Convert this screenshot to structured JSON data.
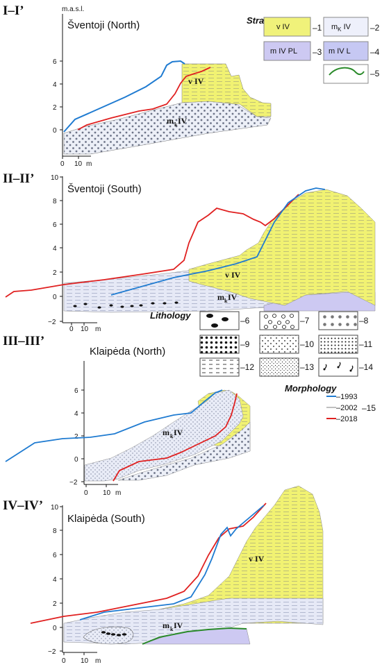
{
  "profiles": [
    {
      "id": "I–I’",
      "place": "Šventoji (North)",
      "yticks": [
        "0",
        "2",
        "4",
        "6"
      ],
      "xticks": [
        "0",
        "10",
        "m"
      ],
      "units": [
        "v IV",
        "m",
        "k",
        "IV"
      ]
    },
    {
      "id": "II–II’",
      "place": "Šventoji (South)",
      "yticks": [
        "−2",
        "0",
        "2",
        "4",
        "6",
        "8",
        "10"
      ],
      "xticks": [
        "0",
        "10",
        "m"
      ],
      "units": [
        "v IV",
        "m",
        "k",
        "IV"
      ]
    },
    {
      "id": "III–III’",
      "place": "Klaipėda (North)",
      "yticks": [
        "−2",
        "0",
        "2",
        "4",
        "6"
      ],
      "xticks": [
        "0",
        "10",
        "m"
      ],
      "units": [
        "m",
        "k",
        "IV"
      ]
    },
    {
      "id": "IV–IV’",
      "place": "Klaipėda (South)",
      "yticks": [
        "−2",
        "0",
        "2",
        "4",
        "6",
        "8",
        "10"
      ],
      "xticks": [
        "0",
        "10",
        "m"
      ],
      "units": [
        "v IV",
        "m",
        "k",
        "IV"
      ]
    }
  ],
  "yaxis_unit": "m.a.s.l.",
  "legend": {
    "stratigraphy_title": "Stratigraphy",
    "lithology_title": "Lithology",
    "morphology_title": "Morphology",
    "strat_items": [
      {
        "label": "v IV",
        "num": "–1",
        "color": "#f0f27a"
      },
      {
        "label": "m",
        "sub": "K",
        "label2": " IV",
        "num": "–2",
        "color": "#eef0fb"
      },
      {
        "label": "m IV PL",
        "num": "–3",
        "color": "#cdc9f2"
      },
      {
        "label": "m IV L",
        "num": "–4",
        "color": "#c6c8f3"
      },
      {
        "label": "",
        "num": "–5",
        "color": "#2a8a2a"
      }
    ],
    "litho_items": [
      {
        "num": "–6"
      },
      {
        "num": "–7"
      },
      {
        "num": "–8"
      },
      {
        "num": "–9"
      },
      {
        "num": "–10"
      },
      {
        "num": "–11"
      },
      {
        "num": "–12"
      },
      {
        "num": "–13"
      },
      {
        "num": "–14"
      }
    ],
    "morph_items": [
      {
        "year": "–1993",
        "color": "#1f7bd1"
      },
      {
        "year": "–2002",
        "color": "#bfbfbf"
      },
      {
        "year": "–2018",
        "color": "#e02020"
      }
    ],
    "morph_num": "–15"
  }
}
